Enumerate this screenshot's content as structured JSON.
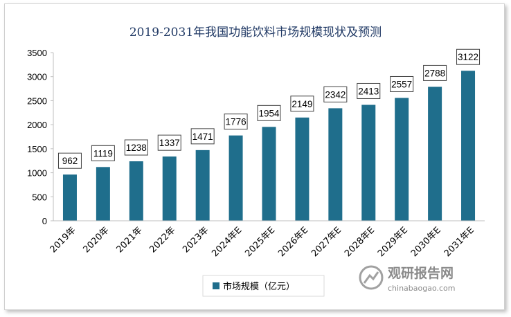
{
  "chart_data": {
    "type": "bar",
    "title": "2019-2031年我国功能饮料市场规模现状及预测",
    "categories": [
      "2019年",
      "2020年",
      "2021年",
      "2022年",
      "2023年",
      "2024年E",
      "2025年E",
      "2026年E",
      "2027年E",
      "2028年E",
      "2029年E",
      "2030年E",
      "2031年E"
    ],
    "series": [
      {
        "name": "市场规模（亿元）",
        "values": [
          962,
          1119,
          1238,
          1337,
          1471,
          1776,
          1954,
          2149,
          2342,
          2413,
          2557,
          2788,
          3122
        ]
      }
    ],
    "ylim": [
      0,
      3500
    ],
    "yticks": [
      0,
      500,
      1000,
      1500,
      2000,
      2500,
      3000,
      3500
    ],
    "grid": false,
    "legend": "bottom",
    "bar_color": "#1f6e8c"
  },
  "watermark": {
    "name": "观研报告网",
    "url": "chinabaogao.com"
  }
}
